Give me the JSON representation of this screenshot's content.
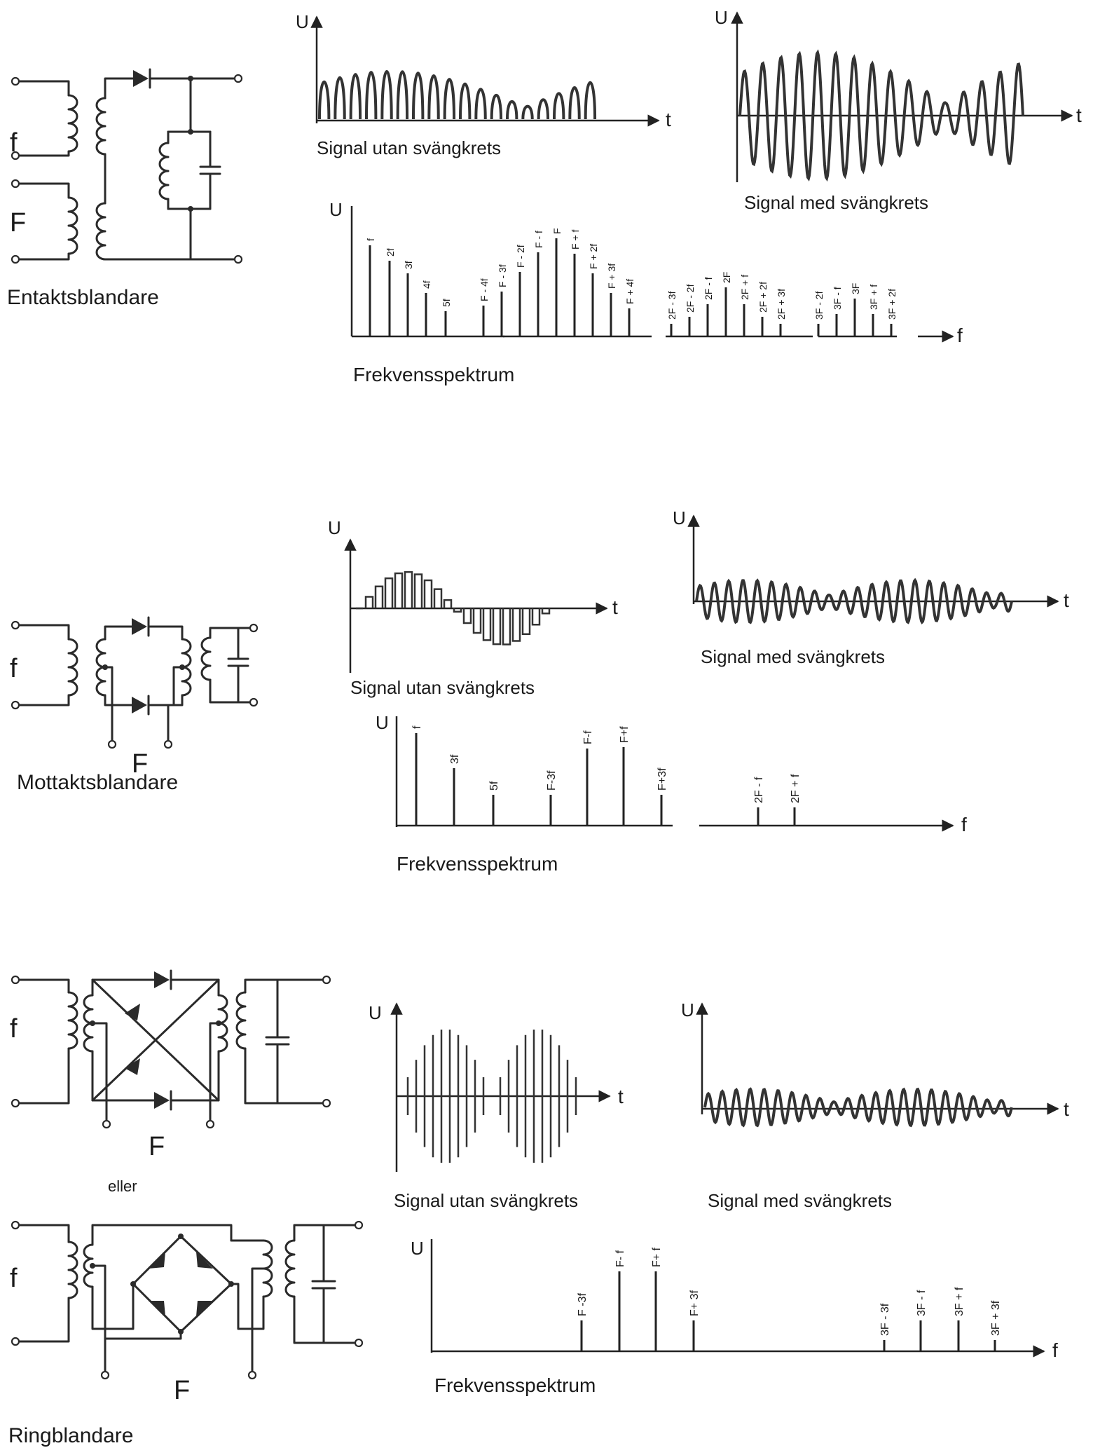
{
  "sections": [
    {
      "circuit_title": "Entaktsblandare",
      "input_labels": [
        "f",
        "F"
      ],
      "wave_without": {
        "axis_y": "U",
        "axis_x": "t",
        "caption": "Signal utan svängkrets"
      },
      "wave_with": {
        "axis_y": "U",
        "axis_x": "t",
        "caption": "Signal med svängkrets"
      },
      "spectrum": {
        "axis_y": "U",
        "axis_x": "f",
        "caption": "Frekvensspektrum",
        "lines": [
          "f",
          "2f",
          "3f",
          "4f",
          "5f",
          "F - 4f",
          "F - 3f",
          "F - 2f",
          "F - f",
          "F",
          "F + f",
          "F + 2f",
          "F + 3f",
          "F + 4f",
          "2F - 3f",
          "2F - 2f",
          "2F - f",
          "2F",
          "2F + f",
          "2F + 2f",
          "2F + 3f",
          "3F - 2f",
          "3F - f",
          "3F",
          "3F + f",
          "3F + 2f"
        ]
      }
    },
    {
      "circuit_title": "Mottaktsblandare",
      "input_labels": [
        "f",
        "F"
      ],
      "wave_without": {
        "axis_y": "U",
        "axis_x": "t",
        "caption": "Signal utan svängkrets"
      },
      "wave_with": {
        "axis_y": "U",
        "axis_x": "t",
        "caption": "Signal med svängkrets"
      },
      "spectrum": {
        "axis_y": "U",
        "axis_x": "f",
        "caption": "Frekvensspektrum",
        "lines": [
          "f",
          "3f",
          "5f",
          "F-3f",
          "F-f",
          "F+f",
          "F+3f",
          "2F - f",
          "2F + f"
        ]
      }
    },
    {
      "circuit_title": "Ringblandare",
      "alt_label": "eller",
      "input_labels": [
        "f",
        "F",
        "f",
        "F"
      ],
      "wave_without": {
        "axis_y": "U",
        "axis_x": "t",
        "caption": "Signal utan svängkrets"
      },
      "wave_with": {
        "axis_y": "U",
        "axis_x": "t",
        "caption": "Signal med svängkrets"
      },
      "spectrum": {
        "axis_y": "U",
        "axis_x": "f",
        "caption": "Frekvensspektrum",
        "lines": [
          "F -3f",
          "F- f",
          "F+ f",
          "F+ 3f",
          "3F - 3f",
          "3F - f",
          "3F + f",
          "3F + 3f"
        ]
      }
    }
  ]
}
